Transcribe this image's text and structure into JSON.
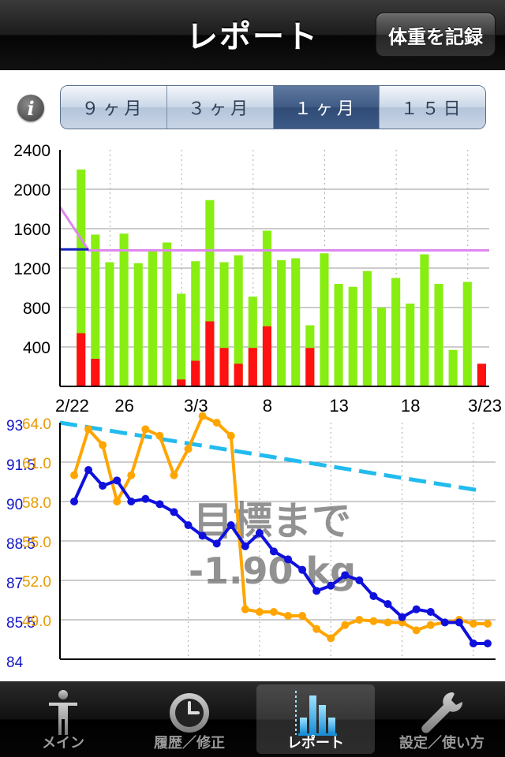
{
  "nav": {
    "title": "レポート",
    "record_button": "体重を記録"
  },
  "segments": [
    {
      "label": "９ヶ月",
      "active": false
    },
    {
      "label": "３ヶ月",
      "active": false
    },
    {
      "label": "１ヶ月",
      "active": true
    },
    {
      "label": "１５日",
      "active": false
    }
  ],
  "info_icon": "info-icon",
  "overlay": {
    "line1": "目標まで",
    "line2": "-1.90 kg"
  },
  "tabs": [
    {
      "label": "メイン",
      "icon": "person-icon",
      "active": false
    },
    {
      "label": "履歴／修正",
      "icon": "clock-icon",
      "active": false
    },
    {
      "label": "レポート",
      "icon": "bar-chart-icon",
      "active": true
    },
    {
      "label": "設定／使い方",
      "icon": "wrench-icon",
      "active": false
    }
  ],
  "colors": {
    "green": "#88ee11",
    "red": "#ff1111",
    "pink": "#dd88ee",
    "navy": "#1122bb",
    "blue": "#1010dd",
    "orange": "#ffa500",
    "dash": "#22bbee"
  },
  "chart_data": [
    {
      "type": "bar",
      "title": "",
      "x_tick_labels": [
        "2/22",
        "26",
        "3/3",
        "8",
        "13",
        "18",
        "3/23"
      ],
      "ylim": [
        0,
        2400
      ],
      "y_ticks": [
        400,
        800,
        1200,
        1600,
        2000,
        2400
      ],
      "series": [
        {
          "values": [
            0,
            2200,
            1540,
            1260,
            1550,
            1250,
            1390,
            1460,
            940,
            1270,
            1890,
            1260,
            1330,
            910,
            1580,
            1280,
            1300,
            620,
            1350,
            1040,
            1010,
            1170,
            800,
            1100,
            840,
            1340,
            1040,
            370,
            1060,
            0
          ]
        },
        {
          "values": [
            0,
            540,
            280,
            0,
            0,
            0,
            0,
            0,
            70,
            260,
            660,
            390,
            230,
            390,
            610,
            0,
            0,
            390,
            0,
            0,
            0,
            0,
            0,
            0,
            0,
            0,
            0,
            0,
            0,
            230
          ]
        }
      ],
      "reference_lines": [
        {
          "points": [
            [
              0,
              1820
            ],
            [
              2,
              1380
            ],
            [
              30,
              1380
            ]
          ]
        },
        {
          "points": [
            [
              0,
              1390
            ],
            [
              2,
              1390
            ]
          ]
        }
      ]
    },
    {
      "type": "line",
      "title": "",
      "y_left_ticks": [
        "93",
        "91.5",
        "90",
        "88.5",
        "87",
        "85.5",
        "84"
      ],
      "y_left_range": [
        84,
        93
      ],
      "y_right_ticks": [
        "64.0",
        "61.0",
        "58.0",
        "55.0",
        "52.0",
        "49.0"
      ],
      "y_right_range": [
        46.0,
        64.0
      ],
      "series": [
        {
          "name": "weight",
          "values": [
            90.0,
            91.2,
            90.6,
            90.8,
            90.0,
            90.1,
            89.9,
            89.6,
            89.1,
            88.7,
            88.4,
            89.1,
            88.3,
            88.8,
            88.1,
            87.8,
            87.4,
            86.6,
            86.8,
            87.2,
            87.0,
            86.4,
            86.1,
            85.6,
            85.9,
            85.8,
            85.4,
            85.4,
            84.6,
            84.6
          ]
        },
        {
          "name": "body_fat",
          "values": [
            60.0,
            63.5,
            62.3,
            58.0,
            60.0,
            63.5,
            63.0,
            60.0,
            62.0,
            64.5,
            64.0,
            63.0,
            49.8,
            49.6,
            49.6,
            49.3,
            49.3,
            48.3,
            47.6,
            48.6,
            49.0,
            48.9,
            48.8,
            48.8,
            48.2,
            48.6,
            48.8,
            49.0,
            48.7,
            48.7
          ]
        },
        {
          "name": "goal",
          "values": [
            93.0,
            90.4
          ]
        }
      ]
    }
  ]
}
